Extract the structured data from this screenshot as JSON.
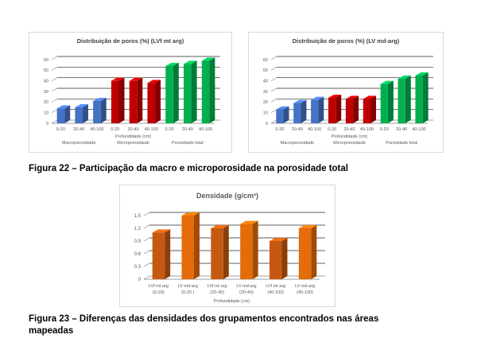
{
  "figure22": {
    "caption": "Figura 22 – Participação da macro e microporosidade na porosidade total",
    "charts": [
      {
        "title": "Distribuição de poros (%) (LVf mt arg)",
        "xlabel": "Profundidade (cm)",
        "groups": [
          "Macroporosidade",
          "Microporosidade",
          "Porosidade total"
        ]
      },
      {
        "title": "Distribuição de poros (%) (LV md-arg)",
        "xlabel": "Profundidade (cm)",
        "groups": [
          "Macroporosidade",
          "Microporosidade",
          "Porosidade total"
        ]
      }
    ]
  },
  "figure23": {
    "caption_line1": "Figura 23 – Diferenças das densidades dos grupamentos encontrados nas áreas",
    "caption_line2": "mapeadas",
    "title": "Densidade (g/cm³)",
    "xlabel": "Profundidade (cm)"
  },
  "colors": {
    "macro": "#4472c4",
    "micro": "#c00000",
    "total": "#00b050",
    "density": "#e46c0a",
    "density_alt": "#c65911"
  },
  "chart_data": [
    {
      "type": "bar",
      "title": "Distribuição de poros (%) (LVf mt arg)",
      "xlabel": "Profundidade (cm)",
      "ylabel": "",
      "ylim": [
        0,
        60
      ],
      "yticks": [
        "0",
        "10",
        "20",
        "30",
        "40",
        "50",
        "60"
      ],
      "categories": [
        "0-20",
        "20-40",
        "40-100",
        "0-20",
        "20-40",
        "40-100",
        "0-20",
        "20-40",
        "40-100"
      ],
      "groups": [
        "Macroporosidade",
        "Microporosidade",
        "Porosidade total"
      ],
      "values": [
        14,
        15,
        21,
        40,
        40,
        38,
        54,
        56,
        59
      ],
      "grid": true,
      "legend": "none"
    },
    {
      "type": "bar",
      "title": "Distribuição de poros (%) (LV md-arg)",
      "xlabel": "Profundidade (cm)",
      "ylabel": "",
      "ylim": [
        0,
        60
      ],
      "yticks": [
        "0",
        "10",
        "20",
        "30",
        "40",
        "50",
        "60"
      ],
      "categories": [
        "0-20",
        "20-40",
        "40-100",
        "0-20",
        "20-40",
        "40-100",
        "0-20",
        "20-40",
        "40-100"
      ],
      "groups": [
        "Macroporosidade",
        "Microporosidade",
        "Porosidade total"
      ],
      "values": [
        13,
        19,
        22,
        24,
        23,
        23,
        37,
        42,
        45
      ],
      "grid": true,
      "legend": "none"
    },
    {
      "type": "bar",
      "title": "Densidade (g/cm³)",
      "xlabel": "Profundidade (cm)",
      "ylabel": "",
      "ylim": [
        0,
        1.5
      ],
      "yticks": [
        "0",
        "0.3",
        "0.6",
        "0.9",
        "1.2",
        "1.5"
      ],
      "categories": [
        [
          "LVf mt arg",
          "(0-20)"
        ],
        [
          "LV md-arg",
          "(0-20 )"
        ],
        [
          "LVf mt arg",
          "(20-40)"
        ],
        [
          "LV md-arg",
          "(20-40)"
        ],
        [
          "LVf mt arg",
          "(40-100)"
        ],
        [
          "LV md-arg",
          "(40-100)"
        ]
      ],
      "values": [
        1.1,
        1.5,
        1.2,
        1.3,
        0.9,
        1.2
      ],
      "grid": true,
      "legend": "none"
    }
  ]
}
